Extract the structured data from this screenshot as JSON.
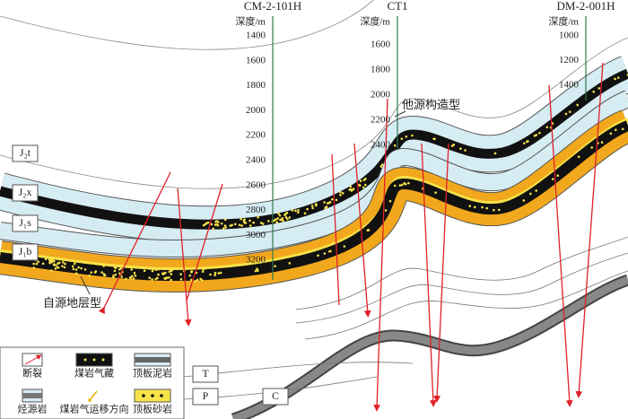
{
  "wells": [
    {
      "name": "CM-2-101H",
      "depth_label": "深度/m",
      "depths": [
        1400,
        1600,
        1800,
        2000,
        2200,
        2400,
        2600,
        2800,
        3000,
        3200
      ]
    },
    {
      "name": "CT1",
      "depth_label": "深度/m",
      "depths": [
        1600,
        1800,
        2000,
        2200,
        2400
      ]
    },
    {
      "name": "DM-2-001H",
      "depth_label": "深度/m",
      "depths": [
        1000,
        1200,
        1400
      ]
    }
  ],
  "layers": [
    "J₂t",
    "J₂x",
    "J₁s",
    "J₁b",
    "T",
    "P",
    "C"
  ],
  "annotations": [
    "他源构造型",
    "自源地层型"
  ],
  "legend": [
    "断裂",
    "煤岩气藏",
    "顶板泥岩",
    "烃源岩",
    "煤岩气运移方向",
    "顶板砂岩"
  ]
}
